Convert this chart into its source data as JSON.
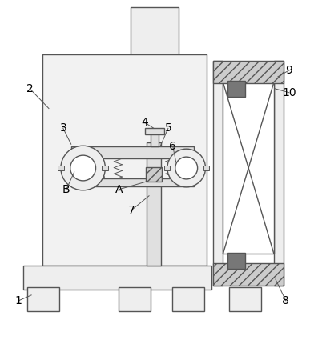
{
  "line_color": "#555555",
  "lw": 1.0,
  "lw_thin": 0.7,
  "fc_light": "#f2f2f2",
  "fc_mid": "#e0e0e0",
  "fc_dark": "#888888",
  "fc_hatch": "#cccccc",
  "labels": [
    "1",
    "2",
    "3",
    "4",
    "5",
    "6",
    "7",
    "8",
    "9",
    "10",
    "A",
    "B"
  ],
  "label_fontsize": 10
}
